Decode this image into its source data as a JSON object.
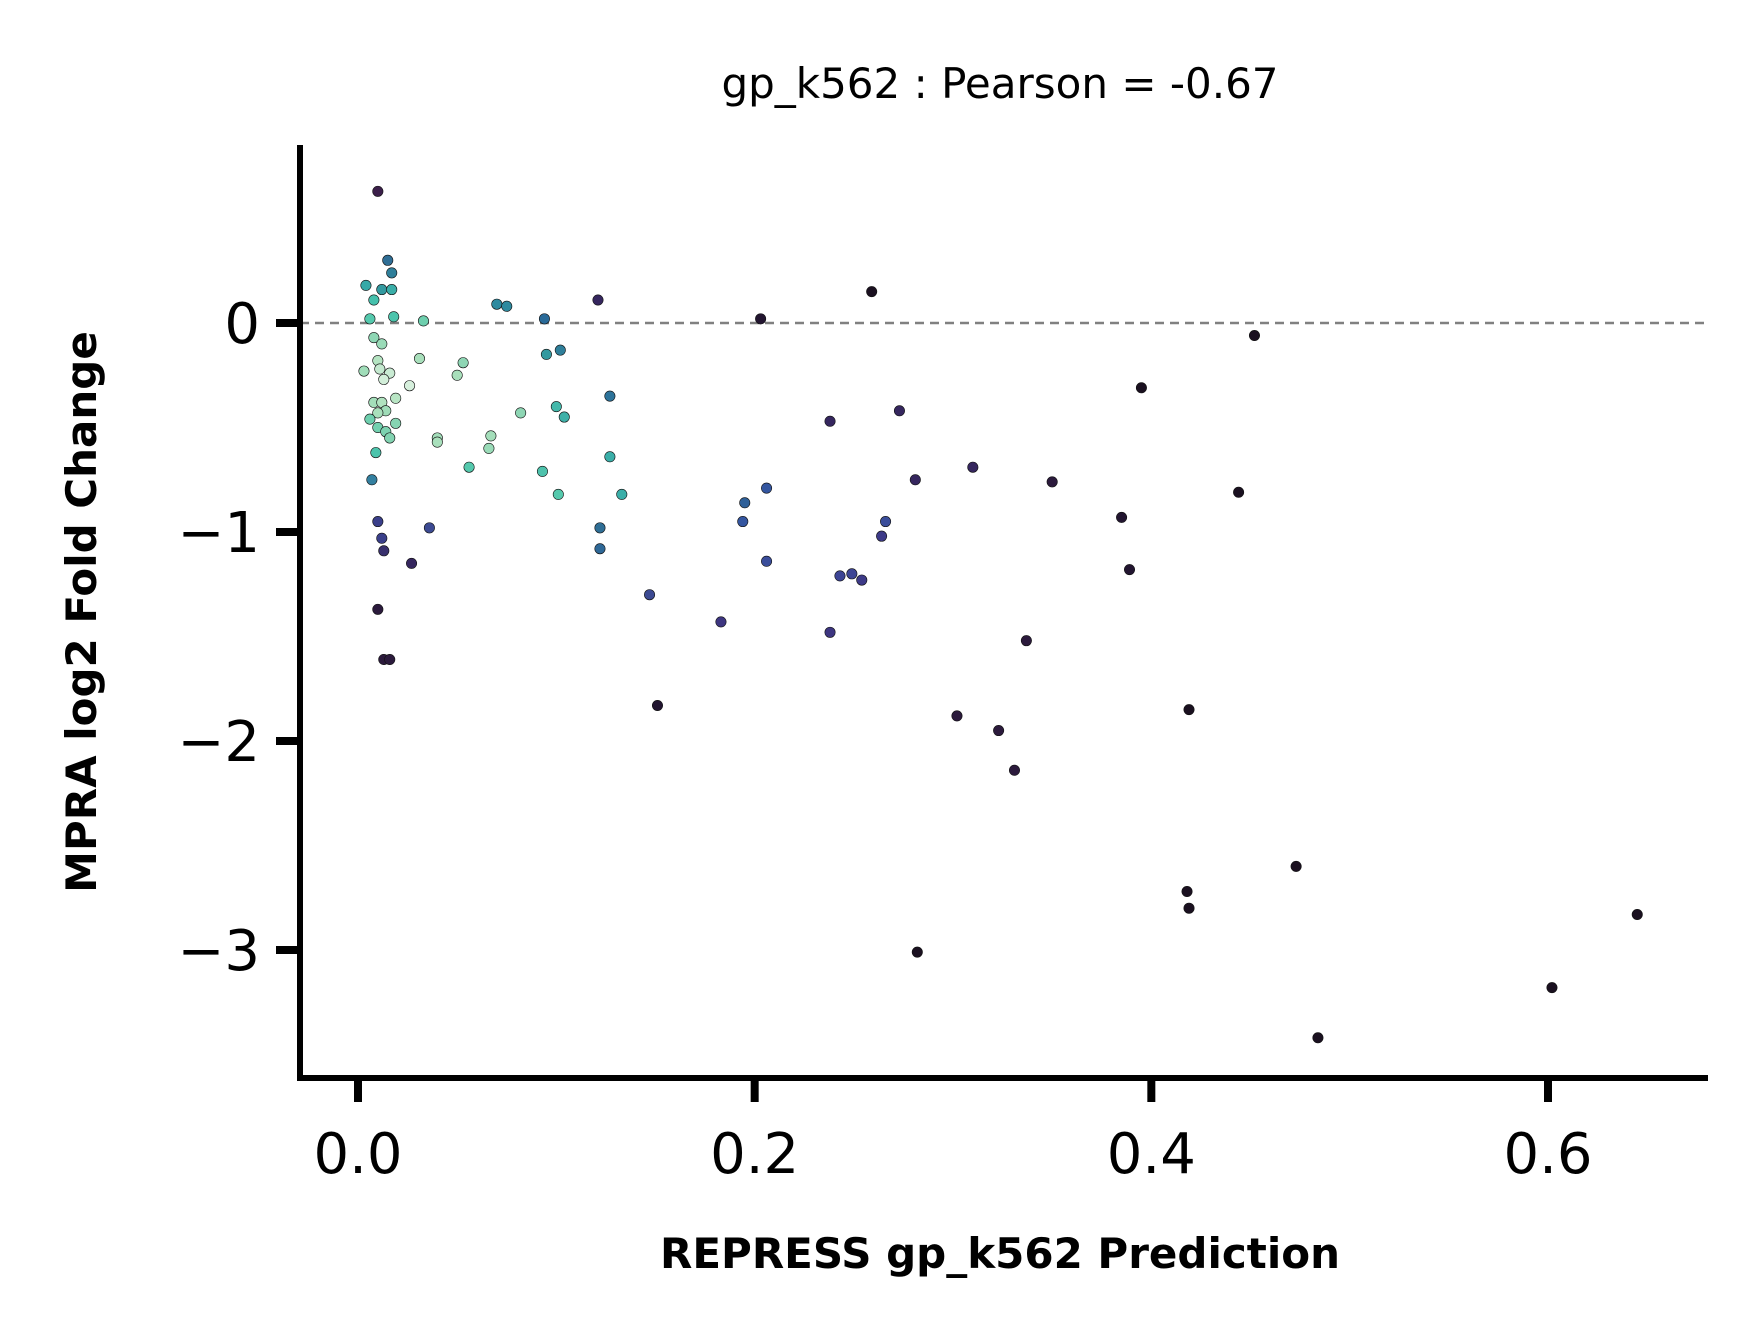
{
  "chart_data": {
    "type": "scatter",
    "title": "gp_k562 : Pearson = -0.67",
    "xlabel": "REPRESS gp_k562 Prediction",
    "ylabel": "MPRA log2 Fold Change",
    "xlim": [
      -0.03,
      0.68
    ],
    "ylim": [
      -3.6,
      0.85
    ],
    "xticks": [
      0.0,
      0.2,
      0.4,
      0.6
    ],
    "xtick_labels": [
      "0.0",
      "0.2",
      "0.4",
      "0.6"
    ],
    "yticks": [
      0,
      -1,
      -2,
      -3
    ],
    "ytick_labels": [
      "0",
      "−1",
      "−2",
      "−3"
    ],
    "reference_line": {
      "y": 0,
      "style": "dashed",
      "color": "#808080"
    },
    "grid": false,
    "colormap": "mako (point density, light = dense, dark = sparse)",
    "points": [
      {
        "x": 0.01,
        "y": 0.63,
        "c": "#3b1f4a"
      },
      {
        "x": 0.015,
        "y": 0.3,
        "c": "#2f6e95"
      },
      {
        "x": 0.017,
        "y": 0.24,
        "c": "#2f7f9a"
      },
      {
        "x": 0.004,
        "y": 0.18,
        "c": "#37a9a7"
      },
      {
        "x": 0.012,
        "y": 0.16,
        "c": "#33999f"
      },
      {
        "x": 0.017,
        "y": 0.16,
        "c": "#3aaea8"
      },
      {
        "x": 0.008,
        "y": 0.11,
        "c": "#45c0ac"
      },
      {
        "x": 0.006,
        "y": 0.02,
        "c": "#55c9ad"
      },
      {
        "x": 0.018,
        "y": 0.03,
        "c": "#4cc4ac"
      },
      {
        "x": 0.033,
        "y": 0.01,
        "c": "#6ecfae"
      },
      {
        "x": 0.008,
        "y": -0.07,
        "c": "#8ed6b4"
      },
      {
        "x": 0.012,
        "y": -0.1,
        "c": "#9adbb8"
      },
      {
        "x": 0.031,
        "y": -0.17,
        "c": "#a8dfbb"
      },
      {
        "x": 0.01,
        "y": -0.18,
        "c": "#b5e4c2"
      },
      {
        "x": 0.053,
        "y": -0.19,
        "c": "#8ed6b4"
      },
      {
        "x": 0.003,
        "y": -0.23,
        "c": "#a0ddb9"
      },
      {
        "x": 0.011,
        "y": -0.22,
        "c": "#c4e9cf"
      },
      {
        "x": 0.016,
        "y": -0.24,
        "c": "#c9ebd3"
      },
      {
        "x": 0.013,
        "y": -0.27,
        "c": "#d2eed9"
      },
      {
        "x": 0.05,
        "y": -0.25,
        "c": "#a8dfbb"
      },
      {
        "x": 0.026,
        "y": -0.3,
        "c": "#d6efdc"
      },
      {
        "x": 0.019,
        "y": -0.36,
        "c": "#b8e5c4"
      },
      {
        "x": 0.008,
        "y": -0.38,
        "c": "#a4deba"
      },
      {
        "x": 0.012,
        "y": -0.38,
        "c": "#b0e2bf"
      },
      {
        "x": 0.014,
        "y": -0.42,
        "c": "#9fdcb8"
      },
      {
        "x": 0.01,
        "y": -0.43,
        "c": "#a9e0bc"
      },
      {
        "x": 0.006,
        "y": -0.46,
        "c": "#6ecfae"
      },
      {
        "x": 0.019,
        "y": -0.48,
        "c": "#86d4b2"
      },
      {
        "x": 0.01,
        "y": -0.5,
        "c": "#72d0af"
      },
      {
        "x": 0.014,
        "y": -0.52,
        "c": "#7dd2b0"
      },
      {
        "x": 0.016,
        "y": -0.55,
        "c": "#82d3b1"
      },
      {
        "x": 0.04,
        "y": -0.55,
        "c": "#a4deba"
      },
      {
        "x": 0.04,
        "y": -0.57,
        "c": "#a9e0bc"
      },
      {
        "x": 0.067,
        "y": -0.54,
        "c": "#a4deba"
      },
      {
        "x": 0.066,
        "y": -0.6,
        "c": "#9adbb8"
      },
      {
        "x": 0.082,
        "y": -0.43,
        "c": "#8ed6b4"
      },
      {
        "x": 0.009,
        "y": -0.62,
        "c": "#4cc4ac"
      },
      {
        "x": 0.056,
        "y": -0.69,
        "c": "#55c9ad"
      },
      {
        "x": 0.007,
        "y": -0.75,
        "c": "#3380a0"
      },
      {
        "x": 0.07,
        "y": 0.09,
        "c": "#2f8a9f"
      },
      {
        "x": 0.075,
        "y": 0.08,
        "c": "#2f8a9f"
      },
      {
        "x": 0.094,
        "y": 0.02,
        "c": "#2a6a98"
      },
      {
        "x": 0.102,
        "y": -0.13,
        "c": "#2f7f9a"
      },
      {
        "x": 0.095,
        "y": -0.15,
        "c": "#33999f"
      },
      {
        "x": 0.1,
        "y": -0.4,
        "c": "#43b8aa"
      },
      {
        "x": 0.104,
        "y": -0.45,
        "c": "#3fb0a8"
      },
      {
        "x": 0.093,
        "y": -0.71,
        "c": "#4ec2ac"
      },
      {
        "x": 0.127,
        "y": -0.64,
        "c": "#3aaea8"
      },
      {
        "x": 0.101,
        "y": -0.82,
        "c": "#55c9ad"
      },
      {
        "x": 0.133,
        "y": -0.82,
        "c": "#3aaea8"
      },
      {
        "x": 0.127,
        "y": -0.35,
        "c": "#2d739a"
      },
      {
        "x": 0.122,
        "y": -0.98,
        "c": "#2f6e95"
      },
      {
        "x": 0.122,
        "y": -1.08,
        "c": "#2e6897"
      },
      {
        "x": 0.121,
        "y": 0.11,
        "c": "#35265e"
      },
      {
        "x": 0.01,
        "y": -0.95,
        "c": "#3a3f8a"
      },
      {
        "x": 0.012,
        "y": -1.03,
        "c": "#3a3f8a"
      },
      {
        "x": 0.013,
        "y": -1.09,
        "c": "#38306d"
      },
      {
        "x": 0.036,
        "y": -0.98,
        "c": "#3c4a92"
      },
      {
        "x": 0.027,
        "y": -1.15,
        "c": "#35265e"
      },
      {
        "x": 0.01,
        "y": -1.37,
        "c": "#2b1a3c"
      },
      {
        "x": 0.013,
        "y": -1.61,
        "c": "#2b1a3c"
      },
      {
        "x": 0.016,
        "y": -1.61,
        "c": "#2b1a3c"
      },
      {
        "x": 0.147,
        "y": -1.3,
        "c": "#3c4a92"
      },
      {
        "x": 0.151,
        "y": -1.83,
        "c": "#221530"
      },
      {
        "x": 0.183,
        "y": -1.43,
        "c": "#3d3580"
      },
      {
        "x": 0.195,
        "y": -0.86,
        "c": "#2e5f98"
      },
      {
        "x": 0.194,
        "y": -0.95,
        "c": "#3456a0"
      },
      {
        "x": 0.206,
        "y": -0.79,
        "c": "#3456a0"
      },
      {
        "x": 0.206,
        "y": -1.14,
        "c": "#3a4d9a"
      },
      {
        "x": 0.203,
        "y": 0.02,
        "c": "#221530"
      },
      {
        "x": 0.238,
        "y": -0.47,
        "c": "#35265e"
      },
      {
        "x": 0.238,
        "y": -1.48,
        "c": "#3d3580"
      },
      {
        "x": 0.243,
        "y": -1.21,
        "c": "#3d4595"
      },
      {
        "x": 0.249,
        "y": -1.2,
        "c": "#3d4595"
      },
      {
        "x": 0.254,
        "y": -1.23,
        "c": "#3d3a88"
      },
      {
        "x": 0.259,
        "y": 0.15,
        "c": "#1a1020"
      },
      {
        "x": 0.266,
        "y": -0.95,
        "c": "#3a4d9a"
      },
      {
        "x": 0.264,
        "y": -1.02,
        "c": "#3d3a88"
      },
      {
        "x": 0.273,
        "y": -0.42,
        "c": "#35265e"
      },
      {
        "x": 0.281,
        "y": -0.75,
        "c": "#35265e"
      },
      {
        "x": 0.282,
        "y": -3.01,
        "c": "#1a1020"
      },
      {
        "x": 0.302,
        "y": -1.88,
        "c": "#2b1a3c"
      },
      {
        "x": 0.31,
        "y": -0.69,
        "c": "#35265e"
      },
      {
        "x": 0.323,
        "y": -1.95,
        "c": "#2b1a3c"
      },
      {
        "x": 0.331,
        "y": -2.14,
        "c": "#2b1a3c"
      },
      {
        "x": 0.337,
        "y": -1.52,
        "c": "#2b1a3c"
      },
      {
        "x": 0.35,
        "y": -0.76,
        "c": "#2b1a3c"
      },
      {
        "x": 0.385,
        "y": -0.93,
        "c": "#221530"
      },
      {
        "x": 0.389,
        "y": -1.18,
        "c": "#221530"
      },
      {
        "x": 0.395,
        "y": -0.31,
        "c": "#1a1020"
      },
      {
        "x": 0.419,
        "y": -1.85,
        "c": "#1a1020"
      },
      {
        "x": 0.418,
        "y": -2.72,
        "c": "#1a1020"
      },
      {
        "x": 0.419,
        "y": -2.8,
        "c": "#1a1020"
      },
      {
        "x": 0.444,
        "y": -0.81,
        "c": "#1a1020"
      },
      {
        "x": 0.452,
        "y": -0.06,
        "c": "#1a1020"
      },
      {
        "x": 0.473,
        "y": -2.6,
        "c": "#1a1020"
      },
      {
        "x": 0.484,
        "y": -3.42,
        "c": "#1a1020"
      },
      {
        "x": 0.602,
        "y": -3.18,
        "c": "#1a1020"
      },
      {
        "x": 0.645,
        "y": -2.83,
        "c": "#1a1020"
      }
    ]
  }
}
